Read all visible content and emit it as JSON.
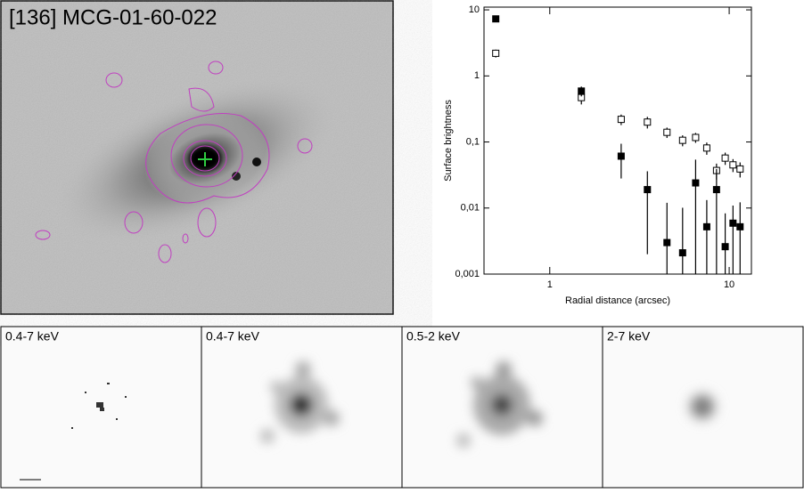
{
  "image_title": "[136] MCG-01-60-022",
  "chart_data": {
    "type": "scatter",
    "xlabel": "Radial distance (arcsec)",
    "ylabel": "Surface brightness",
    "xscale": "log",
    "yscale": "log",
    "xlim": [
      0.43,
      13.3
    ],
    "ylim": [
      0.001,
      11
    ],
    "xticks": [
      1,
      10
    ],
    "yticks": [
      {
        "value": 0.001,
        "label": "0,001"
      },
      {
        "value": 0.01,
        "label": "0,01"
      },
      {
        "value": 0.1,
        "label": "0,1"
      },
      1,
      10
    ],
    "x": [
      0.5,
      1.5,
      2.5,
      3.5,
      4.5,
      5.5,
      6.5,
      7.5,
      8.5,
      9.5,
      10.5,
      11.5
    ],
    "series": [
      {
        "color": "#000000",
        "filled": false,
        "values": [
          2.2,
          0.47,
          0.22,
          0.2,
          0.14,
          0.106,
          0.117,
          0.081,
          0.037,
          0.057,
          0.045,
          0.039
        ],
        "errors": [
          0.3,
          0.1,
          0.04,
          0.04,
          0.025,
          0.02,
          0.02,
          0.017,
          0.01,
          0.012,
          0.01,
          0.01
        ]
      },
      {
        "color": "#000000",
        "filled": true,
        "values": [
          7.3,
          0.59,
          0.061,
          0.019,
          0.003,
          0.0021,
          0.024,
          0.0052,
          0.019,
          0.0026,
          0.0059,
          0.0052
        ],
        "errors": [
          0.5,
          0.1,
          0.033,
          0.017,
          0.009,
          0.008,
          0.03,
          0.008,
          0.02,
          0.0057,
          0.005,
          0.007
        ]
      }
    ]
  },
  "panels": [
    "0.4-7 keV",
    "0.4-7 keV",
    "0.5-2 keV",
    "2-7 keV"
  ]
}
